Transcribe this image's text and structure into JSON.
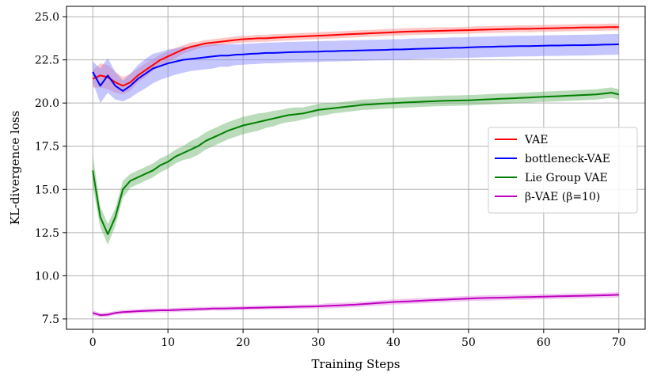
{
  "chart_data": {
    "type": "line",
    "xlabel": "Training Steps",
    "ylabel": "KL-divergence loss",
    "xlim": [
      -3.5,
      73.5
    ],
    "ylim": [
      6.9,
      25.6
    ],
    "xticks": [
      0,
      10,
      20,
      30,
      40,
      50,
      60,
      70
    ],
    "yticks": [
      7.5,
      10.0,
      12.5,
      15.0,
      17.5,
      20.0,
      22.5,
      25.0
    ],
    "xtick_labels": [
      "0",
      "10",
      "20",
      "30",
      "40",
      "50",
      "60",
      "70"
    ],
    "ytick_labels": [
      "7.5",
      "10.0",
      "12.5",
      "15.0",
      "17.5",
      "20.0",
      "22.5",
      "25.0"
    ],
    "grid": true,
    "legend_position": "center-right",
    "x": [
      0,
      1,
      2,
      3,
      4,
      5,
      6,
      7,
      8,
      9,
      10,
      11,
      12,
      13,
      14,
      15,
      16,
      17,
      18,
      19,
      20,
      21,
      22,
      23,
      24,
      25,
      26,
      27,
      28,
      29,
      30,
      31,
      32,
      33,
      34,
      35,
      36,
      37,
      38,
      39,
      40,
      41,
      42,
      43,
      44,
      45,
      46,
      47,
      48,
      49,
      50,
      51,
      52,
      53,
      54,
      55,
      56,
      57,
      58,
      59,
      60,
      61,
      62,
      63,
      64,
      65,
      66,
      67,
      68,
      69,
      70
    ],
    "series": [
      {
        "name": "VAE",
        "color": "#ff0000",
        "band_color": "#ff8080",
        "values": [
          21.4,
          21.6,
          21.5,
          21.2,
          21.0,
          21.2,
          21.6,
          21.9,
          22.2,
          22.5,
          22.7,
          22.9,
          23.1,
          23.25,
          23.35,
          23.45,
          23.5,
          23.55,
          23.6,
          23.65,
          23.7,
          23.72,
          23.75,
          23.75,
          23.78,
          23.8,
          23.82,
          23.84,
          23.86,
          23.88,
          23.9,
          23.92,
          23.94,
          23.96,
          23.98,
          24.0,
          24.02,
          24.04,
          24.06,
          24.08,
          24.1,
          24.12,
          24.14,
          24.15,
          24.16,
          24.17,
          24.18,
          24.19,
          24.2,
          24.21,
          24.22,
          24.24,
          24.25,
          24.26,
          24.27,
          24.28,
          24.29,
          24.3,
          24.3,
          24.31,
          24.32,
          24.33,
          24.34,
          24.35,
          24.36,
          24.37,
          24.38,
          24.38,
          24.39,
          24.4,
          24.4
        ],
        "band": [
          0.5,
          0.7,
          0.7,
          0.6,
          0.5,
          0.5,
          0.4,
          0.4,
          0.35,
          0.3,
          0.3,
          0.3,
          0.25,
          0.25,
          0.2,
          0.2,
          0.2,
          0.2,
          0.2,
          0.2,
          0.2,
          0.2,
          0.2,
          0.2,
          0.2,
          0.2,
          0.2,
          0.2,
          0.2,
          0.2,
          0.2,
          0.2,
          0.2,
          0.2,
          0.2,
          0.2,
          0.2,
          0.2,
          0.2,
          0.2,
          0.2,
          0.2,
          0.2,
          0.2,
          0.2,
          0.2,
          0.2,
          0.2,
          0.2,
          0.2,
          0.2,
          0.2,
          0.2,
          0.2,
          0.2,
          0.2,
          0.2,
          0.2,
          0.2,
          0.2,
          0.2,
          0.2,
          0.2,
          0.2,
          0.2,
          0.2,
          0.2,
          0.2,
          0.2,
          0.2,
          0.2
        ]
      },
      {
        "name": "bottleneck-VAE",
        "color": "#0000ff",
        "band_color": "#8080ff",
        "values": [
          21.8,
          21.0,
          21.6,
          21.0,
          20.7,
          21.0,
          21.4,
          21.7,
          22.0,
          22.15,
          22.3,
          22.4,
          22.5,
          22.55,
          22.6,
          22.65,
          22.7,
          22.75,
          22.75,
          22.8,
          22.82,
          22.85,
          22.87,
          22.9,
          22.9,
          22.92,
          22.94,
          22.95,
          22.96,
          22.97,
          22.98,
          23.0,
          23.0,
          23.02,
          23.03,
          23.04,
          23.05,
          23.06,
          23.07,
          23.08,
          23.1,
          23.1,
          23.12,
          23.14,
          23.15,
          23.16,
          23.17,
          23.18,
          23.2,
          23.2,
          23.22,
          23.24,
          23.25,
          23.26,
          23.27,
          23.28,
          23.29,
          23.3,
          23.3,
          23.31,
          23.32,
          23.33,
          23.33,
          23.34,
          23.35,
          23.35,
          23.36,
          23.37,
          23.38,
          23.39,
          23.4
        ],
        "band": [
          0.6,
          1.0,
          1.0,
          0.8,
          0.6,
          0.7,
          0.8,
          0.85,
          0.85,
          0.8,
          0.8,
          0.75,
          0.75,
          0.7,
          0.7,
          0.7,
          0.7,
          0.65,
          0.65,
          0.6,
          0.6,
          0.6,
          0.6,
          0.6,
          0.6,
          0.6,
          0.6,
          0.6,
          0.6,
          0.6,
          0.6,
          0.6,
          0.6,
          0.6,
          0.6,
          0.6,
          0.6,
          0.6,
          0.6,
          0.6,
          0.6,
          0.6,
          0.6,
          0.6,
          0.6,
          0.6,
          0.6,
          0.6,
          0.6,
          0.6,
          0.6,
          0.6,
          0.6,
          0.6,
          0.6,
          0.6,
          0.6,
          0.6,
          0.6,
          0.6,
          0.6,
          0.6,
          0.6,
          0.6,
          0.6,
          0.6,
          0.6,
          0.6,
          0.6,
          0.6,
          0.6
        ]
      },
      {
        "name": "Lie Group VAE",
        "color": "#008000",
        "band_color": "#66b266",
        "values": [
          16.1,
          13.4,
          12.4,
          13.4,
          15.0,
          15.5,
          15.7,
          15.9,
          16.1,
          16.4,
          16.6,
          16.9,
          17.1,
          17.3,
          17.5,
          17.8,
          18.0,
          18.2,
          18.4,
          18.55,
          18.7,
          18.8,
          18.9,
          19.0,
          19.1,
          19.2,
          19.3,
          19.35,
          19.4,
          19.5,
          19.6,
          19.65,
          19.7,
          19.75,
          19.8,
          19.85,
          19.9,
          19.92,
          19.95,
          19.98,
          20.0,
          20.02,
          20.04,
          20.06,
          20.08,
          20.1,
          20.12,
          20.13,
          20.14,
          20.15,
          20.16,
          20.18,
          20.2,
          20.22,
          20.24,
          20.26,
          20.28,
          20.3,
          20.32,
          20.34,
          20.36,
          20.38,
          20.4,
          20.42,
          20.44,
          20.46,
          20.48,
          20.5,
          20.55,
          20.6,
          20.5
        ],
        "band": [
          0.9,
          0.6,
          0.6,
          0.5,
          0.5,
          0.4,
          0.4,
          0.4,
          0.4,
          0.4,
          0.4,
          0.4,
          0.4,
          0.5,
          0.5,
          0.5,
          0.5,
          0.5,
          0.5,
          0.5,
          0.5,
          0.5,
          0.5,
          0.45,
          0.45,
          0.4,
          0.4,
          0.4,
          0.35,
          0.35,
          0.35,
          0.35,
          0.3,
          0.3,
          0.3,
          0.3,
          0.3,
          0.3,
          0.3,
          0.3,
          0.3,
          0.3,
          0.3,
          0.3,
          0.3,
          0.3,
          0.3,
          0.3,
          0.3,
          0.3,
          0.3,
          0.3,
          0.3,
          0.3,
          0.3,
          0.3,
          0.3,
          0.3,
          0.3,
          0.3,
          0.3,
          0.3,
          0.3,
          0.3,
          0.3,
          0.3,
          0.3,
          0.3,
          0.3,
          0.3,
          0.3
        ]
      },
      {
        "name": "β-VAE (β=10)",
        "color": "#bf00bf",
        "band_color": "#df80df",
        "values": [
          7.85,
          7.72,
          7.75,
          7.85,
          7.9,
          7.92,
          7.95,
          7.97,
          7.98,
          8.0,
          8.0,
          8.02,
          8.04,
          8.05,
          8.07,
          8.08,
          8.1,
          8.1,
          8.11,
          8.12,
          8.13,
          8.14,
          8.15,
          8.16,
          8.17,
          8.18,
          8.19,
          8.2,
          8.21,
          8.22,
          8.23,
          8.25,
          8.27,
          8.29,
          8.31,
          8.33,
          8.36,
          8.39,
          8.42,
          8.45,
          8.48,
          8.5,
          8.52,
          8.54,
          8.56,
          8.58,
          8.6,
          8.62,
          8.64,
          8.66,
          8.68,
          8.7,
          8.71,
          8.72,
          8.73,
          8.74,
          8.75,
          8.76,
          8.77,
          8.78,
          8.79,
          8.8,
          8.81,
          8.82,
          8.83,
          8.84,
          8.85,
          8.86,
          8.87,
          8.88,
          8.9
        ],
        "band": [
          0.15,
          0.12,
          0.12,
          0.12,
          0.12,
          0.12,
          0.12,
          0.12,
          0.12,
          0.12,
          0.12,
          0.12,
          0.12,
          0.12,
          0.12,
          0.12,
          0.12,
          0.12,
          0.12,
          0.12,
          0.12,
          0.12,
          0.12,
          0.12,
          0.12,
          0.12,
          0.12,
          0.12,
          0.12,
          0.12,
          0.12,
          0.15,
          0.15,
          0.15,
          0.15,
          0.15,
          0.15,
          0.15,
          0.15,
          0.15,
          0.15,
          0.15,
          0.15,
          0.15,
          0.15,
          0.15,
          0.15,
          0.15,
          0.15,
          0.15,
          0.15,
          0.15,
          0.15,
          0.15,
          0.15,
          0.15,
          0.15,
          0.15,
          0.15,
          0.15,
          0.15,
          0.15,
          0.15,
          0.15,
          0.15,
          0.15,
          0.15,
          0.15,
          0.15,
          0.15,
          0.15
        ]
      }
    ]
  }
}
